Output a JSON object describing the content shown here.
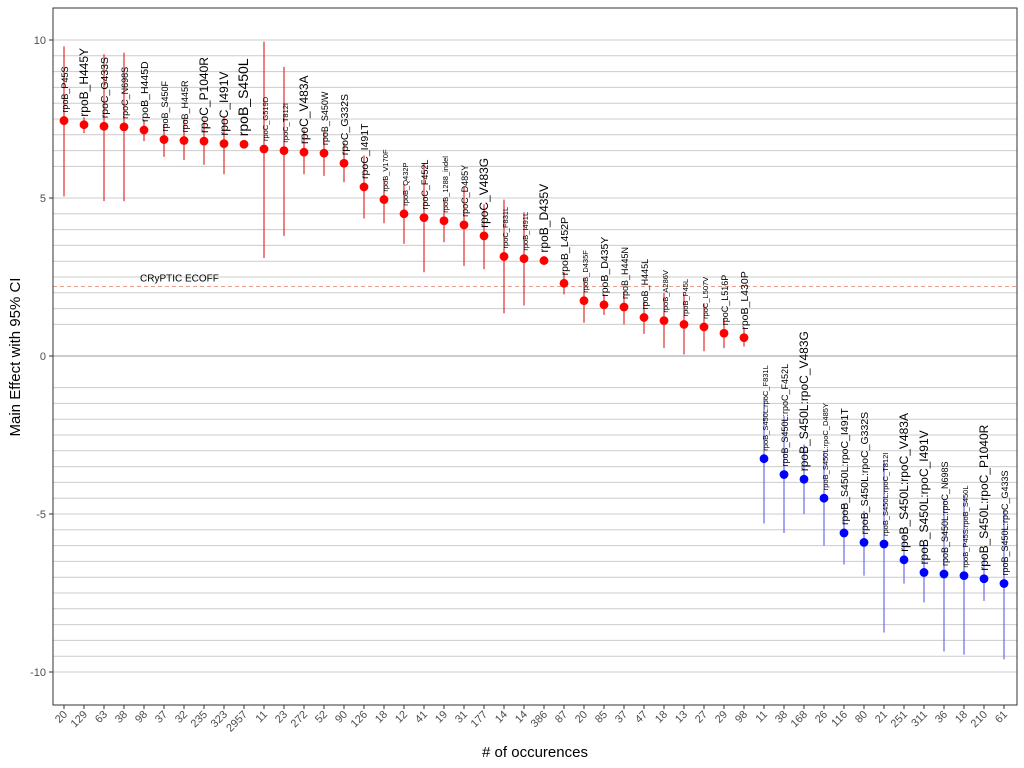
{
  "chart_data": {
    "type": "scatter",
    "subtype": "point-range",
    "xlabel": "# of occurences",
    "ylabel": "Main Effect with 95% CI",
    "ylim": [
      -11.0,
      11.0
    ],
    "yticks": [
      -10,
      -5,
      0,
      5,
      10
    ],
    "minor_gridlines": [
      -9.5,
      -9,
      -8.5,
      -8,
      -7.5,
      -7,
      -6.5,
      -6,
      -5.5,
      -4.5,
      -4,
      -3.5,
      -3,
      -2.5,
      -2,
      -1.5,
      -1,
      1,
      1.5,
      2,
      2.5,
      3,
      3.5,
      4,
      4.5,
      6,
      6.5,
      7,
      7.5,
      8,
      8.5,
      9,
      9.5,
      10
    ],
    "reference_line": {
      "y": 2.2,
      "label": "CRyPTIC ECOFF",
      "color": "#e8a090",
      "style": "dashed"
    },
    "zero_line": {
      "y": 0,
      "color": "#999999"
    },
    "colors": {
      "positive": "#ff0000",
      "negative": "#0000ff",
      "grid": "#cccccc"
    },
    "points": [
      {
        "label": "rpoB_P45S",
        "count": "20",
        "value": 7.45,
        "lo": 5.05,
        "hi": 9.8,
        "size": "small",
        "group": "positive"
      },
      {
        "label": "rpoB_H445Y",
        "count": "129",
        "value": 7.32,
        "lo": 7.05,
        "hi": 7.55,
        "size": "large",
        "group": "positive"
      },
      {
        "label": "rpoC_G433S",
        "count": "63",
        "value": 7.27,
        "lo": 4.9,
        "hi": 9.55,
        "size": "medium",
        "group": "positive"
      },
      {
        "label": "rpoC_N698S",
        "count": "38",
        "value": 7.25,
        "lo": 4.9,
        "hi": 9.6,
        "size": "small",
        "group": "positive"
      },
      {
        "label": "rpoB_H445D",
        "count": "98",
        "value": 7.15,
        "lo": 6.8,
        "hi": 7.45,
        "size": "medium",
        "group": "positive"
      },
      {
        "label": "rpoB_S450F",
        "count": "37",
        "value": 6.85,
        "lo": 6.3,
        "hi": 7.35,
        "size": "small",
        "group": "positive"
      },
      {
        "label": "rpoB_H445R",
        "count": "32",
        "value": 6.82,
        "lo": 6.2,
        "hi": 7.5,
        "size": "small",
        "group": "positive"
      },
      {
        "label": "rpoC_P1040R",
        "count": "235",
        "value": 6.8,
        "lo": 6.05,
        "hi": 7.45,
        "size": "large",
        "group": "positive"
      },
      {
        "label": "rpoC_I491V",
        "count": "323",
        "value": 6.72,
        "lo": 5.75,
        "hi": 7.55,
        "size": "large",
        "group": "positive"
      },
      {
        "label": "rpoB_S450L",
        "count": "2957",
        "value": 6.7,
        "lo": 6.65,
        "hi": 6.75,
        "size": "xlarge",
        "group": "positive"
      },
      {
        "label": "rpoC_G519D",
        "count": "11",
        "value": 6.55,
        "lo": 3.1,
        "hi": 9.95,
        "size": "xsmall",
        "group": "positive"
      },
      {
        "label": "rpoC_T812I",
        "count": "23",
        "value": 6.5,
        "lo": 3.8,
        "hi": 9.15,
        "size": "xsmall",
        "group": "positive"
      },
      {
        "label": "rpoC_V483A",
        "count": "272",
        "value": 6.45,
        "lo": 5.75,
        "hi": 7.15,
        "size": "large",
        "group": "positive"
      },
      {
        "label": "rpoB_S450W",
        "count": "52",
        "value": 6.42,
        "lo": 5.7,
        "hi": 7.1,
        "size": "small",
        "group": "positive"
      },
      {
        "label": "rpoC_G332S",
        "count": "90",
        "value": 6.1,
        "lo": 5.5,
        "hi": 6.75,
        "size": "medium",
        "group": "positive"
      },
      {
        "label": "rpoC_I491T",
        "count": "126",
        "value": 5.35,
        "lo": 4.35,
        "hi": 6.35,
        "size": "medium",
        "group": "positive"
      },
      {
        "label": "rpoB_V170F",
        "count": "18",
        "value": 4.95,
        "lo": 4.2,
        "hi": 5.6,
        "size": "xsmall",
        "group": "positive"
      },
      {
        "label": "rpoB_Q432P",
        "count": "12",
        "value": 4.5,
        "lo": 3.55,
        "hi": 5.45,
        "size": "xsmall",
        "group": "positive"
      },
      {
        "label": "rpoC_F452L",
        "count": "41",
        "value": 4.38,
        "lo": 2.65,
        "hi": 6.1,
        "size": "small",
        "group": "positive"
      },
      {
        "label": "rpoB_1288_indel",
        "count": "19",
        "value": 4.28,
        "lo": 3.6,
        "hi": 4.95,
        "size": "xsmall",
        "group": "positive"
      },
      {
        "label": "rpoC_D485Y",
        "count": "31",
        "value": 4.15,
        "lo": 2.85,
        "hi": 5.35,
        "size": "small",
        "group": "positive"
      },
      {
        "label": "rpoC_V483G",
        "count": "177",
        "value": 3.8,
        "lo": 2.75,
        "hi": 4.8,
        "size": "large",
        "group": "positive"
      },
      {
        "label": "rpoC_F831L",
        "count": "14",
        "value": 3.15,
        "lo": 1.35,
        "hi": 4.95,
        "size": "xsmall",
        "group": "positive"
      },
      {
        "label": "rpoB_I491L",
        "count": "14",
        "value": 3.08,
        "lo": 1.6,
        "hi": 4.55,
        "size": "xsmall",
        "group": "positive"
      },
      {
        "label": "rpoB_D435V",
        "count": "386",
        "value": 3.02,
        "lo": 2.9,
        "hi": 3.15,
        "size": "large",
        "group": "positive"
      },
      {
        "label": "rpoB_L452P",
        "count": "87",
        "value": 2.3,
        "lo": 1.95,
        "hi": 2.65,
        "size": "medium",
        "group": "positive"
      },
      {
        "label": "rpoB_D435F",
        "count": "20",
        "value": 1.75,
        "lo": 1.05,
        "hi": 2.45,
        "size": "xsmall",
        "group": "positive"
      },
      {
        "label": "rpoB_D435Y",
        "count": "85",
        "value": 1.62,
        "lo": 1.3,
        "hi": 1.95,
        "size": "medium",
        "group": "positive"
      },
      {
        "label": "rpoB_H445N",
        "count": "37",
        "value": 1.55,
        "lo": 1.0,
        "hi": 2.05,
        "size": "small",
        "group": "positive"
      },
      {
        "label": "rpoB_H445L",
        "count": "47",
        "value": 1.22,
        "lo": 0.7,
        "hi": 1.75,
        "size": "small",
        "group": "positive"
      },
      {
        "label": "rpoB_A286V",
        "count": "18",
        "value": 1.12,
        "lo": 0.25,
        "hi": 2.0,
        "size": "xsmall",
        "group": "positive"
      },
      {
        "label": "rpoB_P45L",
        "count": "13",
        "value": 1.0,
        "lo": 0.05,
        "hi": 1.95,
        "size": "xsmall",
        "group": "positive"
      },
      {
        "label": "rpoC_L507V",
        "count": "27",
        "value": 0.92,
        "lo": 0.15,
        "hi": 1.65,
        "size": "xsmall",
        "group": "positive"
      },
      {
        "label": "rpoC_L516P",
        "count": "29",
        "value": 0.72,
        "lo": 0.25,
        "hi": 1.2,
        "size": "small",
        "group": "positive"
      },
      {
        "label": "rpoB_L430P",
        "count": "98",
        "value": 0.58,
        "lo": 0.3,
        "hi": 0.9,
        "size": "medium",
        "group": "positive"
      },
      {
        "label": "rpoB_S450L:rpoC_F831L",
        "count": "11",
        "value": -3.25,
        "lo": -5.3,
        "hi": -1.3,
        "size": "xsmall",
        "group": "negative"
      },
      {
        "label": "rpoB_S450L:rpoC_F452L",
        "count": "38",
        "value": -3.75,
        "lo": -5.6,
        "hi": -1.9,
        "size": "small",
        "group": "negative"
      },
      {
        "label": "rpoB_S450L:rpoC_V483G",
        "count": "168",
        "value": -3.9,
        "lo": -5.0,
        "hi": -2.8,
        "size": "large",
        "group": "negative"
      },
      {
        "label": "rpoB_S450L:rpoC_D485Y",
        "count": "26",
        "value": -4.5,
        "lo": -6.0,
        "hi": -3.0,
        "size": "xsmall",
        "group": "negative"
      },
      {
        "label": "rpoB_S450L:rpoC_I491T",
        "count": "116",
        "value": -5.6,
        "lo": -6.6,
        "hi": -4.65,
        "size": "medium",
        "group": "negative"
      },
      {
        "label": "rpoB_S450L:rpoC_G332S",
        "count": "80",
        "value": -5.9,
        "lo": -6.95,
        "hi": -4.9,
        "size": "medium",
        "group": "negative"
      },
      {
        "label": "rpoB_S450L:rpoC_T812I",
        "count": "21",
        "value": -5.95,
        "lo": -8.75,
        "hi": -3.3,
        "size": "xsmall",
        "group": "negative"
      },
      {
        "label": "rpoB_S450L:rpoC_V483A",
        "count": "251",
        "value": -6.45,
        "lo": -7.2,
        "hi": -5.7,
        "size": "large",
        "group": "negative"
      },
      {
        "label": "rpoB_S450L:rpoC_I491V",
        "count": "311",
        "value": -6.85,
        "lo": -7.8,
        "hi": -5.9,
        "size": "large",
        "group": "negative"
      },
      {
        "label": "rpoB_S450L:rpoC_N698S",
        "count": "36",
        "value": -6.9,
        "lo": -9.35,
        "hi": -4.55,
        "size": "small",
        "group": "negative"
      },
      {
        "label": "rpoB_P45S:rpoB_S450L",
        "count": "18",
        "value": -6.95,
        "lo": -9.45,
        "hi": -4.45,
        "size": "xsmall",
        "group": "negative"
      },
      {
        "label": "rpoB_S450L:rpoC_P1040R",
        "count": "210",
        "value": -7.05,
        "lo": -7.75,
        "hi": -6.35,
        "size": "large",
        "group": "negative"
      },
      {
        "label": "rpoB_S450L:rpoC_G433S",
        "count": "61",
        "value": -7.2,
        "lo": -9.6,
        "hi": -4.85,
        "size": "small",
        "group": "negative"
      }
    ]
  }
}
